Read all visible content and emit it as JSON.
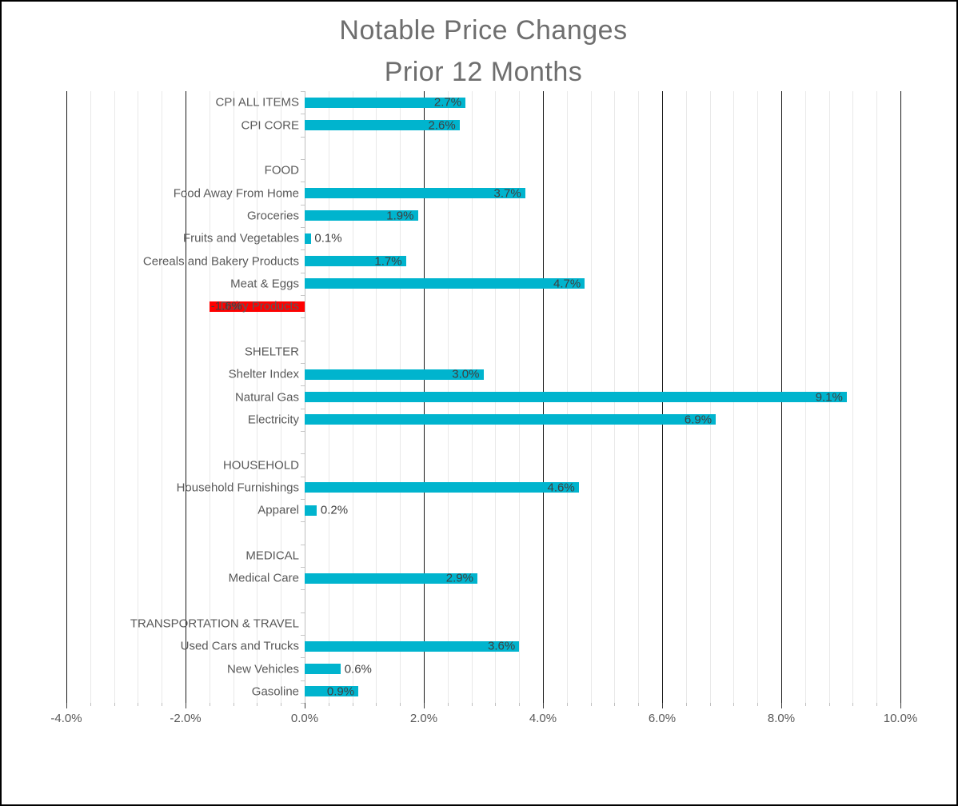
{
  "title": {
    "line1": "Notable Price Changes",
    "line2": "Prior 12 Months"
  },
  "chart_data": {
    "type": "bar",
    "orientation": "horizontal",
    "title": "Notable Price Changes",
    "subtitle": "Prior 12 Months",
    "legend": "none",
    "grid": "vertical major (black) + vertical minor (light gray)",
    "xlim": [
      -4.0,
      10.0
    ],
    "x_major_step": 2.0,
    "x_minor_step": 0.4,
    "x_tick_labels": [
      "-4.0%",
      "-2.0%",
      "0.0%",
      "2.0%",
      "4.0%",
      "6.0%",
      "8.0%",
      "10.0%"
    ],
    "value_unit": "percent change, prior 12 months",
    "rows": [
      {
        "kind": "item",
        "label": "CPI ALL ITEMS",
        "value": 2.7,
        "value_label": "2.7%"
      },
      {
        "kind": "item",
        "label": "CPI CORE",
        "value": 2.6,
        "value_label": "2.6%"
      },
      {
        "kind": "spacer",
        "label": ""
      },
      {
        "kind": "header",
        "label": "FOOD"
      },
      {
        "kind": "item",
        "label": "Food Away From Home",
        "value": 3.7,
        "value_label": "3.7%"
      },
      {
        "kind": "item",
        "label": "Groceries",
        "value": 1.9,
        "value_label": "1.9%"
      },
      {
        "kind": "item",
        "label": "Fruits and Vegetables",
        "value": 0.1,
        "value_label": "0.1%"
      },
      {
        "kind": "item",
        "label": "Cereals and Bakery Products",
        "value": 1.7,
        "value_label": "1.7%"
      },
      {
        "kind": "item",
        "label": "Meat & Eggs",
        "value": 4.7,
        "value_label": "4.7%"
      },
      {
        "kind": "item",
        "label": "Dairy Products",
        "value": -1.6,
        "value_label": "-1.6%",
        "color": "#ff0000"
      },
      {
        "kind": "spacer",
        "label": ""
      },
      {
        "kind": "header",
        "label": "SHELTER"
      },
      {
        "kind": "item",
        "label": "Shelter Index",
        "value": 3.0,
        "value_label": "3.0%"
      },
      {
        "kind": "item",
        "label": "Natural Gas",
        "value": 9.1,
        "value_label": "9.1%"
      },
      {
        "kind": "item",
        "label": "Electricity",
        "value": 6.9,
        "value_label": "6.9%"
      },
      {
        "kind": "spacer",
        "label": ""
      },
      {
        "kind": "header",
        "label": "HOUSEHOLD"
      },
      {
        "kind": "item",
        "label": "Household Furnishings",
        "value": 4.6,
        "value_label": "4.6%"
      },
      {
        "kind": "item",
        "label": "Apparel",
        "value": 0.2,
        "value_label": "0.2%"
      },
      {
        "kind": "spacer",
        "label": ""
      },
      {
        "kind": "header",
        "label": "MEDICAL"
      },
      {
        "kind": "item",
        "label": "Medical Care",
        "value": 2.9,
        "value_label": "2.9%"
      },
      {
        "kind": "spacer",
        "label": ""
      },
      {
        "kind": "header",
        "label": "TRANSPORTATION & TRAVEL"
      },
      {
        "kind": "item",
        "label": "Used Cars and Trucks",
        "value": 3.6,
        "value_label": "3.6%"
      },
      {
        "kind": "item",
        "label": "New Vehicles",
        "value": 0.6,
        "value_label": "0.6%"
      },
      {
        "kind": "item",
        "label": "Gasoline",
        "value": 0.9,
        "value_label": "0.9%"
      }
    ],
    "colors": {
      "bar_positive": "#00b4ce",
      "bar_negative": "#ff0000",
      "major_gridline": "#1a1a1a",
      "minor_gridline": "#e9e9e9",
      "category_axis": "#bfbfbf",
      "category_text": "#595959",
      "value_text": "#3f3f3f",
      "axis_text": "#595959",
      "title_text": "#6e6e6e"
    }
  }
}
